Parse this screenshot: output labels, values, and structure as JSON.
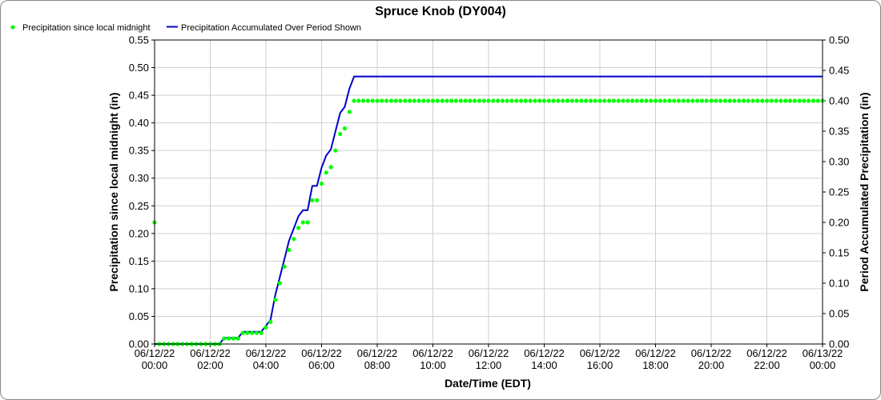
{
  "chart_data": {
    "type": "line",
    "title": "Spruce Knob (DY004)",
    "xlabel": "Date/Time (EDT)",
    "ylabel_left": "Precipitation since local midnight (in)",
    "ylabel_right": "Period Accumulated Precipitation (in)",
    "x_ticks": [
      {
        "hour": 0,
        "date": "06/12/22",
        "time": "00:00"
      },
      {
        "hour": 2,
        "date": "06/12/22",
        "time": "02:00"
      },
      {
        "hour": 4,
        "date": "06/12/22",
        "time": "04:00"
      },
      {
        "hour": 6,
        "date": "06/12/22",
        "time": "06:00"
      },
      {
        "hour": 8,
        "date": "06/12/22",
        "time": "08:00"
      },
      {
        "hour": 10,
        "date": "06/12/22",
        "time": "10:00"
      },
      {
        "hour": 12,
        "date": "06/12/22",
        "time": "12:00"
      },
      {
        "hour": 14,
        "date": "06/12/22",
        "time": "14:00"
      },
      {
        "hour": 16,
        "date": "06/12/22",
        "time": "16:00"
      },
      {
        "hour": 18,
        "date": "06/12/22",
        "time": "18:00"
      },
      {
        "hour": 20,
        "date": "06/12/22",
        "time": "20:00"
      },
      {
        "hour": 22,
        "date": "06/12/22",
        "time": "22:00"
      },
      {
        "hour": 24,
        "date": "06/13/22",
        "time": "00:00"
      }
    ],
    "xlim_hours": [
      0,
      24
    ],
    "ylim_left": [
      0,
      0.55
    ],
    "ylim_right": [
      0,
      0.5
    ],
    "yticks_left": [
      "0.00",
      "0.05",
      "0.10",
      "0.15",
      "0.20",
      "0.25",
      "0.30",
      "0.35",
      "0.40",
      "0.45",
      "0.50",
      "0.55"
    ],
    "yticks_right": [
      "0.00",
      "0.05",
      "0.10",
      "0.15",
      "0.20",
      "0.25",
      "0.30",
      "0.35",
      "0.40",
      "0.45",
      "0.50"
    ],
    "grid": true,
    "legend_position": "top-left",
    "series": [
      {
        "name": "Precipitation since local midnight",
        "axis": "left",
        "style": "dots",
        "color": "#00ff00",
        "points": [
          [
            0.0,
            0.22
          ],
          [
            0.167,
            0.0
          ],
          [
            0.333,
            0.0
          ],
          [
            0.5,
            0.0
          ],
          [
            0.667,
            0.0
          ],
          [
            0.833,
            0.0
          ],
          [
            1.0,
            0.0
          ],
          [
            1.167,
            0.0
          ],
          [
            1.333,
            0.0
          ],
          [
            1.5,
            0.0
          ],
          [
            1.667,
            0.0
          ],
          [
            1.833,
            0.0
          ],
          [
            2.0,
            0.0
          ],
          [
            2.167,
            0.0
          ],
          [
            2.333,
            0.0
          ],
          [
            2.5,
            0.01
          ],
          [
            2.667,
            0.01
          ],
          [
            2.833,
            0.01
          ],
          [
            3.0,
            0.01
          ],
          [
            3.167,
            0.02
          ],
          [
            3.333,
            0.02
          ],
          [
            3.5,
            0.02
          ],
          [
            3.667,
            0.02
          ],
          [
            3.833,
            0.02
          ],
          [
            4.0,
            0.03
          ],
          [
            4.167,
            0.04
          ],
          [
            4.333,
            0.08
          ],
          [
            4.5,
            0.11
          ],
          [
            4.667,
            0.14
          ],
          [
            4.833,
            0.17
          ],
          [
            5.0,
            0.19
          ],
          [
            5.167,
            0.21
          ],
          [
            5.333,
            0.22
          ],
          [
            5.5,
            0.22
          ],
          [
            5.667,
            0.26
          ],
          [
            5.833,
            0.26
          ],
          [
            6.0,
            0.29
          ],
          [
            6.167,
            0.31
          ],
          [
            6.333,
            0.32
          ],
          [
            6.5,
            0.35
          ],
          [
            6.667,
            0.38
          ],
          [
            6.833,
            0.39
          ],
          [
            7.0,
            0.42
          ],
          [
            7.167,
            0.44
          ],
          [
            7.333,
            0.44
          ],
          [
            7.5,
            0.44
          ],
          [
            7.667,
            0.44
          ],
          [
            7.833,
            0.44
          ],
          [
            8.0,
            0.44
          ],
          [
            8.167,
            0.44
          ],
          [
            8.333,
            0.44
          ],
          [
            8.5,
            0.44
          ],
          [
            8.667,
            0.44
          ],
          [
            8.833,
            0.44
          ],
          [
            9.0,
            0.44
          ],
          [
            9.167,
            0.44
          ],
          [
            9.333,
            0.44
          ],
          [
            9.5,
            0.44
          ],
          [
            9.667,
            0.44
          ],
          [
            9.833,
            0.44
          ],
          [
            10.0,
            0.44
          ],
          [
            10.167,
            0.44
          ],
          [
            10.333,
            0.44
          ],
          [
            10.5,
            0.44
          ],
          [
            10.667,
            0.44
          ],
          [
            10.833,
            0.44
          ],
          [
            11.0,
            0.44
          ],
          [
            11.167,
            0.44
          ],
          [
            11.333,
            0.44
          ],
          [
            11.5,
            0.44
          ],
          [
            11.667,
            0.44
          ],
          [
            11.833,
            0.44
          ],
          [
            12.0,
            0.44
          ],
          [
            12.167,
            0.44
          ],
          [
            12.333,
            0.44
          ],
          [
            12.5,
            0.44
          ],
          [
            12.667,
            0.44
          ],
          [
            12.833,
            0.44
          ],
          [
            13.0,
            0.44
          ],
          [
            13.167,
            0.44
          ],
          [
            13.333,
            0.44
          ],
          [
            13.5,
            0.44
          ],
          [
            13.667,
            0.44
          ],
          [
            13.833,
            0.44
          ],
          [
            14.0,
            0.44
          ],
          [
            14.167,
            0.44
          ],
          [
            14.333,
            0.44
          ],
          [
            14.5,
            0.44
          ],
          [
            14.667,
            0.44
          ],
          [
            14.833,
            0.44
          ],
          [
            15.0,
            0.44
          ],
          [
            15.167,
            0.44
          ],
          [
            15.333,
            0.44
          ],
          [
            15.5,
            0.44
          ],
          [
            15.667,
            0.44
          ],
          [
            15.833,
            0.44
          ],
          [
            16.0,
            0.44
          ],
          [
            16.167,
            0.44
          ],
          [
            16.333,
            0.44
          ],
          [
            16.5,
            0.44
          ],
          [
            16.667,
            0.44
          ],
          [
            16.833,
            0.44
          ],
          [
            17.0,
            0.44
          ],
          [
            17.167,
            0.44
          ],
          [
            17.333,
            0.44
          ],
          [
            17.5,
            0.44
          ],
          [
            17.667,
            0.44
          ],
          [
            17.833,
            0.44
          ],
          [
            18.0,
            0.44
          ],
          [
            18.167,
            0.44
          ],
          [
            18.333,
            0.44
          ],
          [
            18.5,
            0.44
          ],
          [
            18.667,
            0.44
          ],
          [
            18.833,
            0.44
          ],
          [
            19.0,
            0.44
          ],
          [
            19.167,
            0.44
          ],
          [
            19.333,
            0.44
          ],
          [
            19.5,
            0.44
          ],
          [
            19.667,
            0.44
          ],
          [
            19.833,
            0.44
          ],
          [
            20.0,
            0.44
          ],
          [
            20.167,
            0.44
          ],
          [
            20.333,
            0.44
          ],
          [
            20.5,
            0.44
          ],
          [
            20.667,
            0.44
          ],
          [
            20.833,
            0.44
          ],
          [
            21.0,
            0.44
          ],
          [
            21.167,
            0.44
          ],
          [
            21.333,
            0.44
          ],
          [
            21.5,
            0.44
          ],
          [
            21.667,
            0.44
          ],
          [
            21.833,
            0.44
          ],
          [
            22.0,
            0.44
          ],
          [
            22.167,
            0.44
          ],
          [
            22.333,
            0.44
          ],
          [
            22.5,
            0.44
          ],
          [
            22.667,
            0.44
          ],
          [
            22.833,
            0.44
          ],
          [
            23.0,
            0.44
          ],
          [
            23.167,
            0.44
          ],
          [
            23.333,
            0.44
          ],
          [
            23.5,
            0.44
          ],
          [
            23.667,
            0.44
          ],
          [
            23.833,
            0.44
          ],
          [
            24.0,
            0.44
          ]
        ]
      },
      {
        "name": "Precipitation Accumulated Over Period Shown",
        "axis": "right",
        "style": "line",
        "color": "#0000cc",
        "points": [
          [
            0.0,
            0.0
          ],
          [
            2.333,
            0.0
          ],
          [
            2.5,
            0.01
          ],
          [
            3.0,
            0.01
          ],
          [
            3.167,
            0.02
          ],
          [
            3.833,
            0.02
          ],
          [
            4.0,
            0.03
          ],
          [
            4.167,
            0.04
          ],
          [
            4.333,
            0.08
          ],
          [
            4.5,
            0.11
          ],
          [
            4.667,
            0.14
          ],
          [
            4.833,
            0.17
          ],
          [
            5.0,
            0.19
          ],
          [
            5.167,
            0.21
          ],
          [
            5.333,
            0.22
          ],
          [
            5.5,
            0.22
          ],
          [
            5.667,
            0.26
          ],
          [
            5.833,
            0.26
          ],
          [
            6.0,
            0.29
          ],
          [
            6.167,
            0.31
          ],
          [
            6.333,
            0.32
          ],
          [
            6.5,
            0.35
          ],
          [
            6.667,
            0.38
          ],
          [
            6.833,
            0.39
          ],
          [
            7.0,
            0.42
          ],
          [
            7.167,
            0.44
          ],
          [
            24.0,
            0.44
          ]
        ]
      }
    ]
  }
}
